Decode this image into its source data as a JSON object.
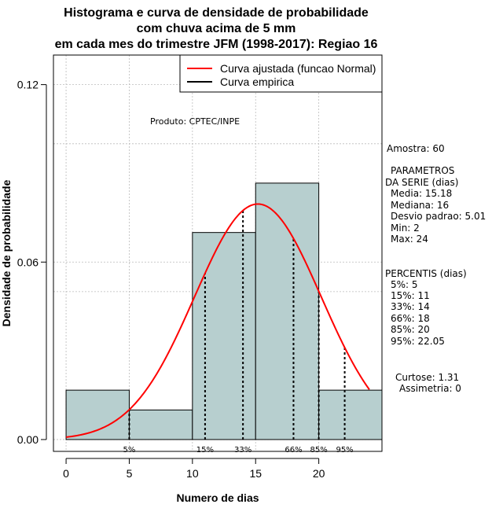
{
  "chart_data": {
    "type": "bar",
    "title_lines": [
      "Histograma e curva de densidade de probabilidade",
      "com chuva acima de 5 mm",
      "em cada mes do trimestre JFM (1998-2017): Regiao 16"
    ],
    "xlabel": "Numero de dias",
    "ylabel": "Densidade de probabilidade",
    "xlim": [
      -1,
      25
    ],
    "ylim": [
      -0.004,
      0.13
    ],
    "x_ticks": [
      0,
      5,
      10,
      15,
      20
    ],
    "y_ticks": [
      0.0,
      0.06,
      0.12
    ],
    "y_tick_labels": [
      "0.00",
      "0.06",
      "0.12"
    ],
    "grid": true,
    "grid_y": [
      0.1,
      0.05
    ],
    "bins": [
      {
        "from": 0,
        "to": 5,
        "density": 0.0167
      },
      {
        "from": 5,
        "to": 10,
        "density": 0.01
      },
      {
        "from": 10,
        "to": 15,
        "density": 0.07
      },
      {
        "from": 15,
        "to": 20,
        "density": 0.0867
      },
      {
        "from": 20,
        "to": 25,
        "density": 0.0167
      }
    ],
    "normal_fit": {
      "mean": 15.18,
      "sd": 5.01,
      "from": 0,
      "to": 24
    },
    "percentile_markers": [
      {
        "label": "5%",
        "x": 5
      },
      {
        "label": "15%",
        "x": 11
      },
      {
        "label": "33%",
        "x": 14
      },
      {
        "label": "66%",
        "x": 18
      },
      {
        "label": "85%",
        "x": 20
      },
      {
        "label": "95%",
        "x": 22.05
      }
    ],
    "legend": [
      {
        "label": "Curva ajustada (funcao Normal)",
        "color": "#ff0000"
      },
      {
        "label": "Curva empirica",
        "color": "#000000"
      }
    ],
    "legend_position": "top-right",
    "annotation": "Produto: CPTEC/INPE",
    "colors": {
      "bar_fill": "#b7cfcf",
      "curve": "#ff0000",
      "outline": "#000000",
      "grid": "#bbbbbb"
    }
  },
  "stats_panel": {
    "amostra": "Amostra: 60",
    "params_header_1": "PARAMETROS",
    "params_header_2": "DA SERIE (dias)",
    "media": "Media: 15.18",
    "mediana": "Mediana: 16",
    "desvio": "Desvio padrao: 5.01",
    "min": "Min: 2",
    "max": "Max: 24",
    "percentis_header": "PERCENTIS (dias)",
    "p5": "5%: 5",
    "p15": "15%: 11",
    "p33": "33%: 14",
    "p66": "66%: 18",
    "p85": "85%: 20",
    "p95": "95%: 22.05",
    "curtose": "Curtose: 1.31",
    "assimetria": "Assimetria: 0"
  }
}
